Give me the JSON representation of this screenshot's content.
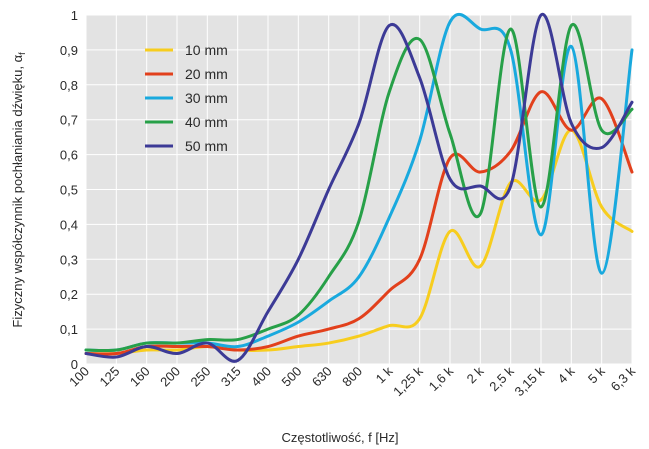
{
  "chart_data": {
    "type": "line",
    "xlabel": "Częstotliwość, f [Hz]",
    "ylabel": "Fizyczny współczynnik pochłaniania dźwięku, α",
    "ylabel_subscript": "f",
    "x_scale": "log (1/3 octave)",
    "categories": [
      "100",
      "125",
      "160",
      "200",
      "250",
      "315",
      "400",
      "500",
      "630",
      "800",
      "1 k",
      "1,25 k",
      "1,6 k",
      "2 k",
      "2,5 k",
      "3,15 k",
      "4 k",
      "5 k",
      "6,3 k"
    ],
    "ylim": [
      0,
      1
    ],
    "yticks": [
      "0",
      "0,1",
      "0,2",
      "0,3",
      "0,4",
      "0,5",
      "0,6",
      "0,7",
      "0,8",
      "0,9",
      "1"
    ],
    "grid": true,
    "legend_position": "top-left",
    "series": [
      {
        "name": "10 mm",
        "color": "#f7cd1e",
        "values": [
          0.03,
          0.03,
          0.04,
          0.04,
          0.05,
          0.04,
          0.04,
          0.05,
          0.06,
          0.08,
          0.11,
          0.13,
          0.38,
          0.28,
          0.52,
          0.47,
          0.67,
          0.45,
          0.38
        ]
      },
      {
        "name": "20 mm",
        "color": "#e2401c",
        "values": [
          0.03,
          0.03,
          0.05,
          0.05,
          0.05,
          0.04,
          0.05,
          0.08,
          0.1,
          0.13,
          0.21,
          0.3,
          0.59,
          0.55,
          0.61,
          0.78,
          0.67,
          0.76,
          0.55
        ]
      },
      {
        "name": "30 mm",
        "color": "#19a9de",
        "values": [
          0.04,
          0.04,
          0.06,
          0.06,
          0.06,
          0.05,
          0.08,
          0.12,
          0.18,
          0.25,
          0.42,
          0.64,
          0.98,
          0.96,
          0.9,
          0.37,
          0.91,
          0.26,
          0.9
        ]
      },
      {
        "name": "40 mm",
        "color": "#27a048",
        "values": [
          0.04,
          0.04,
          0.06,
          0.06,
          0.07,
          0.07,
          0.1,
          0.14,
          0.25,
          0.41,
          0.78,
          0.93,
          0.66,
          0.43,
          0.96,
          0.45,
          0.97,
          0.67,
          0.73
        ]
      },
      {
        "name": "50 mm",
        "color": "#3c3a96",
        "values": [
          0.03,
          0.02,
          0.05,
          0.03,
          0.06,
          0.01,
          0.15,
          0.3,
          0.5,
          0.69,
          0.97,
          0.82,
          0.53,
          0.51,
          0.51,
          1.0,
          0.69,
          0.62,
          0.75
        ]
      }
    ]
  }
}
